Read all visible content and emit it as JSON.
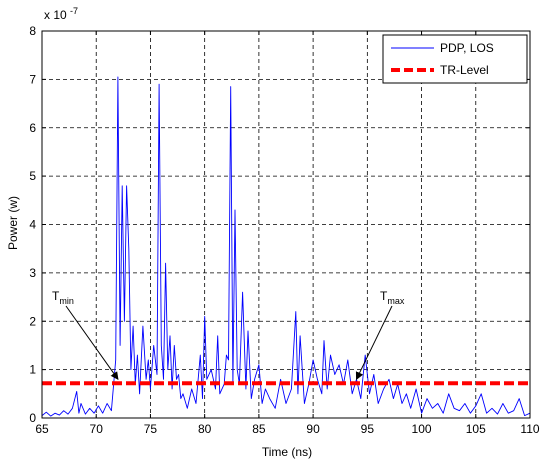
{
  "chart_data": {
    "type": "line",
    "xlabel": "Time (ns)",
    "ylabel": "Power (w)",
    "y_exponent_label": "x 10",
    "y_exponent": "-7",
    "xlim": [
      65,
      110
    ],
    "ylim": [
      0,
      8
    ],
    "x_ticks": [
      "65",
      "70",
      "75",
      "80",
      "85",
      "90",
      "95",
      "100",
      "105",
      "110"
    ],
    "y_ticks": [
      "0",
      "1",
      "2",
      "3",
      "4",
      "5",
      "6",
      "7",
      "8"
    ],
    "grid": true,
    "legend_position": "top-right",
    "series": [
      {
        "name": "PDP, LOS",
        "color": "#0000ff",
        "style": "solid",
        "x": [
          65.0,
          65.4,
          65.8,
          66.2,
          66.6,
          67.0,
          67.4,
          67.8,
          68.2,
          68.4,
          68.6,
          69.0,
          69.4,
          69.8,
          70.2,
          70.6,
          71.0,
          71.4,
          71.8,
          72.0,
          72.2,
          72.4,
          72.6,
          72.8,
          73.0,
          73.2,
          73.4,
          73.6,
          73.8,
          74.0,
          74.3,
          74.6,
          74.8,
          75.0,
          75.3,
          75.6,
          75.8,
          76.0,
          76.2,
          76.4,
          76.6,
          76.8,
          77.0,
          77.2,
          77.4,
          77.6,
          77.8,
          78.0,
          78.4,
          78.8,
          79.2,
          79.6,
          79.8,
          80.0,
          80.2,
          80.6,
          81.0,
          81.2,
          81.4,
          81.8,
          82.0,
          82.2,
          82.4,
          82.6,
          82.8,
          83.0,
          83.2,
          83.5,
          83.8,
          84.0,
          84.3,
          84.6,
          85.0,
          85.3,
          85.6,
          86.0,
          86.5,
          87.0,
          87.5,
          88.0,
          88.4,
          88.6,
          88.8,
          89.2,
          89.6,
          90.0,
          90.4,
          90.8,
          91.0,
          91.3,
          91.6,
          92.0,
          92.4,
          92.8,
          93.2,
          93.6,
          94.0,
          94.4,
          94.8,
          95.2,
          95.6,
          96.0,
          96.5,
          97.0,
          97.4,
          97.8,
          98.2,
          98.6,
          99.0,
          99.5,
          100.0,
          100.5,
          101.0,
          101.5,
          102.0,
          102.5,
          103.0,
          103.5,
          104.0,
          104.5,
          105.0,
          105.5,
          106.0,
          106.5,
          107.0,
          107.5,
          108.0,
          108.5,
          109.0,
          109.5,
          110.0
        ],
        "y": [
          0.05,
          0.12,
          0.04,
          0.1,
          0.06,
          0.15,
          0.08,
          0.2,
          0.55,
          0.1,
          0.3,
          0.08,
          0.2,
          0.1,
          0.25,
          0.1,
          0.3,
          0.15,
          1.2,
          7.05,
          1.5,
          4.8,
          2.0,
          4.8,
          3.5,
          1.0,
          1.9,
          0.7,
          1.3,
          0.5,
          1.9,
          0.8,
          1.2,
          0.6,
          1.5,
          0.9,
          6.9,
          1.5,
          0.8,
          3.2,
          1.0,
          1.7,
          0.6,
          1.5,
          0.8,
          0.9,
          0.4,
          0.5,
          0.2,
          0.6,
          0.3,
          1.3,
          0.4,
          2.1,
          0.8,
          1.0,
          0.6,
          1.7,
          0.5,
          0.7,
          1.3,
          1.2,
          6.85,
          0.7,
          4.3,
          1.0,
          0.7,
          2.6,
          0.6,
          1.8,
          0.4,
          0.8,
          1.1,
          0.3,
          0.6,
          0.4,
          0.2,
          0.8,
          0.3,
          0.6,
          2.2,
          0.5,
          1.7,
          0.3,
          0.7,
          1.2,
          0.8,
          0.5,
          1.6,
          0.6,
          1.3,
          0.9,
          1.1,
          0.7,
          1.2,
          0.5,
          0.8,
          0.4,
          1.3,
          0.5,
          0.9,
          0.3,
          0.6,
          0.8,
          0.4,
          0.7,
          0.3,
          0.5,
          0.2,
          0.6,
          0.1,
          0.4,
          0.2,
          0.3,
          0.1,
          0.5,
          0.2,
          0.15,
          0.3,
          0.1,
          0.25,
          0.5,
          0.1,
          0.2,
          0.08,
          0.3,
          0.1,
          0.15,
          0.4,
          0.05,
          0.1
        ]
      },
      {
        "name": "TR-Level",
        "color": "#ff0000",
        "style": "dashed",
        "x": [
          65,
          110
        ],
        "y": [
          0.72,
          0.72
        ]
      }
    ],
    "annotations": [
      {
        "base": "T",
        "sub": "min",
        "x": 72.0,
        "y": 0.72
      },
      {
        "base": "T",
        "sub": "max",
        "x": 94.0,
        "y": 0.72
      }
    ]
  }
}
